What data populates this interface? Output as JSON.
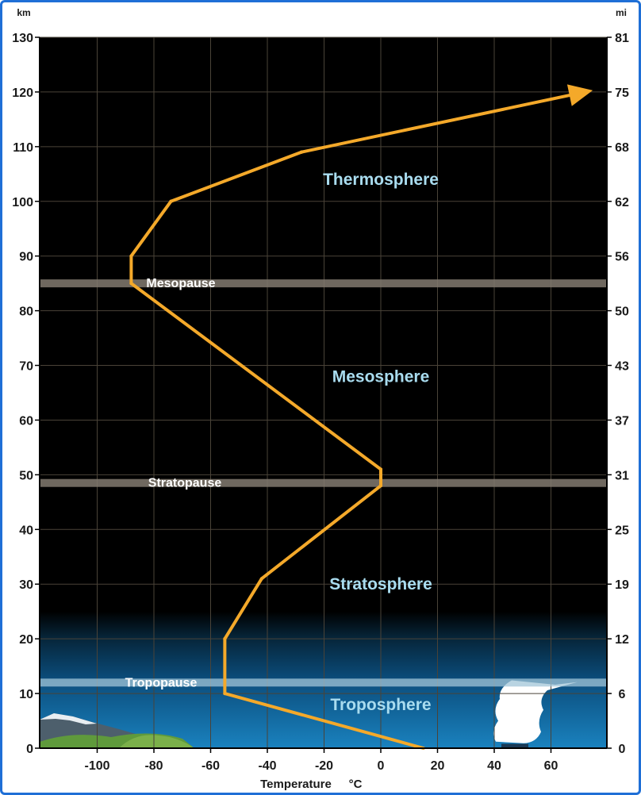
{
  "chart_data": {
    "type": "line",
    "title": "",
    "xlabel": "Temperature",
    "xunit": "°C",
    "ylabel_left": "km",
    "ylabel_right": "mi",
    "xlim": [
      -120,
      80
    ],
    "ylim": [
      0,
      130
    ],
    "x_ticks": [
      -100,
      -80,
      -60,
      -40,
      -20,
      0,
      20,
      40,
      60
    ],
    "y_ticks": [
      0,
      10,
      20,
      30,
      40,
      50,
      60,
      70,
      80,
      90,
      100,
      110,
      120,
      130
    ],
    "y_right_ticks": [
      "0",
      "6",
      "12",
      "19",
      "25",
      "31",
      "37",
      "43",
      "50",
      "56",
      "62",
      "68",
      "75",
      "81"
    ],
    "grid": true,
    "series": [
      {
        "name": "",
        "x": [
          15,
          -55,
          -55,
          -42,
          0,
          0,
          -88,
          -88,
          -74,
          -28,
          72
        ],
        "y": [
          0,
          10,
          20,
          31,
          48,
          51,
          85,
          90,
          100,
          109,
          120
        ]
      }
    ],
    "boundaries": [
      {
        "label": "Tropopause",
        "altitude_km": 12
      },
      {
        "label": "Stratopause",
        "altitude_km": 48.5
      },
      {
        "label": "Mesopause",
        "altitude_km": 85
      }
    ],
    "layers": [
      {
        "label": "Troposphere",
        "x": 0,
        "y": 8
      },
      {
        "label": "Stratosphere",
        "x": 0,
        "y": 30
      },
      {
        "label": "Mesosphere",
        "x": 0,
        "y": 68
      },
      {
        "label": "Thermosphere",
        "x": 0,
        "y": 104
      }
    ]
  },
  "colors": {
    "background": "#000000",
    "curve": "#f4a92a",
    "layer_label": "#a9dcef",
    "boundary_band": "#837a70",
    "tropopause_band": "#a2c6d8",
    "frame": "#1f6fd6"
  }
}
